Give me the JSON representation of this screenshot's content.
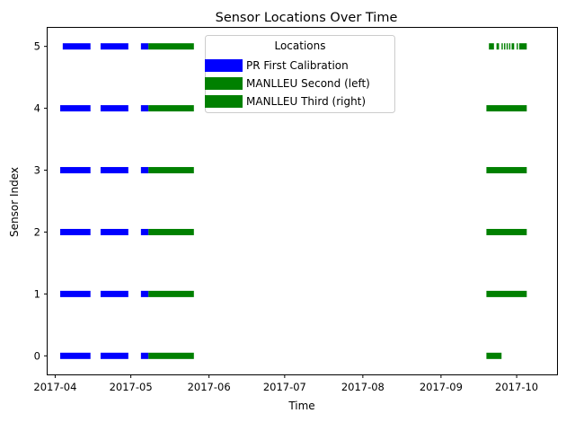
{
  "chart_data": {
    "type": "timeline",
    "title": "Sensor Locations Over Time",
    "xlabel": "Time",
    "ylabel": "Sensor Index",
    "xlim": [
      "2017-03-29",
      "2017-10-17"
    ],
    "ylim": [
      -0.3,
      5.3
    ],
    "x_ticks": [
      "2017-04-01",
      "2017-05-01",
      "2017-06-01",
      "2017-07-01",
      "2017-08-01",
      "2017-09-01",
      "2017-10-01"
    ],
    "x_tick_labels": [
      "2017-04",
      "2017-05",
      "2017-06",
      "2017-07",
      "2017-08",
      "2017-09",
      "2017-10"
    ],
    "y_ticks": [
      0,
      1,
      2,
      3,
      4,
      5
    ],
    "y_tick_labels": [
      "0",
      "1",
      "2",
      "3",
      "4",
      "5"
    ],
    "legend": {
      "title": "Locations",
      "placement": "top-center"
    },
    "series": [
      {
        "name": "PR First Calibration",
        "color": "#0000ff",
        "segments": [
          {
            "sensor": 5,
            "start": "2017-04-04",
            "end": "2017-04-15"
          },
          {
            "sensor": 5,
            "start": "2017-04-19",
            "end": "2017-04-30"
          },
          {
            "sensor": 5,
            "start": "2017-05-05",
            "end": "2017-05-08"
          },
          {
            "sensor": 4,
            "start": "2017-04-03",
            "end": "2017-04-15"
          },
          {
            "sensor": 4,
            "start": "2017-04-19",
            "end": "2017-04-30"
          },
          {
            "sensor": 4,
            "start": "2017-05-05",
            "end": "2017-05-08"
          },
          {
            "sensor": 3,
            "start": "2017-04-03",
            "end": "2017-04-15"
          },
          {
            "sensor": 3,
            "start": "2017-04-19",
            "end": "2017-04-30"
          },
          {
            "sensor": 3,
            "start": "2017-05-05",
            "end": "2017-05-08"
          },
          {
            "sensor": 2,
            "start": "2017-04-03",
            "end": "2017-04-15"
          },
          {
            "sensor": 2,
            "start": "2017-04-19",
            "end": "2017-04-30"
          },
          {
            "sensor": 2,
            "start": "2017-05-05",
            "end": "2017-05-08"
          },
          {
            "sensor": 1,
            "start": "2017-04-03",
            "end": "2017-04-15"
          },
          {
            "sensor": 1,
            "start": "2017-04-19",
            "end": "2017-04-30"
          },
          {
            "sensor": 1,
            "start": "2017-05-05",
            "end": "2017-05-08"
          },
          {
            "sensor": 0,
            "start": "2017-04-03",
            "end": "2017-04-15"
          },
          {
            "sensor": 0,
            "start": "2017-04-19",
            "end": "2017-04-30"
          },
          {
            "sensor": 0,
            "start": "2017-05-05",
            "end": "2017-05-08"
          }
        ]
      },
      {
        "name": "MANLLEU Second (left)",
        "color": "#008000",
        "segments": [
          {
            "sensor": 5,
            "start": "2017-05-08",
            "end": "2017-05-26"
          },
          {
            "sensor": 4,
            "start": "2017-05-08",
            "end": "2017-05-26"
          },
          {
            "sensor": 3,
            "start": "2017-05-08",
            "end": "2017-05-26"
          },
          {
            "sensor": 2,
            "start": "2017-05-08",
            "end": "2017-05-26"
          },
          {
            "sensor": 1,
            "start": "2017-05-08",
            "end": "2017-05-26"
          },
          {
            "sensor": 0,
            "start": "2017-05-08",
            "end": "2017-05-26"
          }
        ]
      },
      {
        "name": "MANLLEU Third (right)",
        "color": "#008000",
        "segments": [
          {
            "sensor": 5,
            "start": "2017-09-20",
            "end": "2017-09-22"
          },
          {
            "sensor": 5,
            "start": "2017-09-23",
            "end": "2017-09-24"
          },
          {
            "sensor": 5,
            "start": "2017-09-25",
            "end": "2017-09-25.5"
          },
          {
            "sensor": 5,
            "start": "2017-09-26",
            "end": "2017-09-26.5"
          },
          {
            "sensor": 5,
            "start": "2017-09-27",
            "end": "2017-09-27.5"
          },
          {
            "sensor": 5,
            "start": "2017-09-28",
            "end": "2017-09-28.5"
          },
          {
            "sensor": 5,
            "start": "2017-09-29",
            "end": "2017-09-30"
          },
          {
            "sensor": 5,
            "start": "2017-10-01",
            "end": "2017-10-01.5"
          },
          {
            "sensor": 5,
            "start": "2017-10-02",
            "end": "2017-10-05"
          },
          {
            "sensor": 4,
            "start": "2017-09-19",
            "end": "2017-10-05"
          },
          {
            "sensor": 3,
            "start": "2017-09-19",
            "end": "2017-10-05"
          },
          {
            "sensor": 2,
            "start": "2017-09-19",
            "end": "2017-10-05"
          },
          {
            "sensor": 1,
            "start": "2017-09-19",
            "end": "2017-10-05"
          },
          {
            "sensor": 0,
            "start": "2017-09-19",
            "end": "2017-09-25"
          }
        ]
      }
    ]
  }
}
